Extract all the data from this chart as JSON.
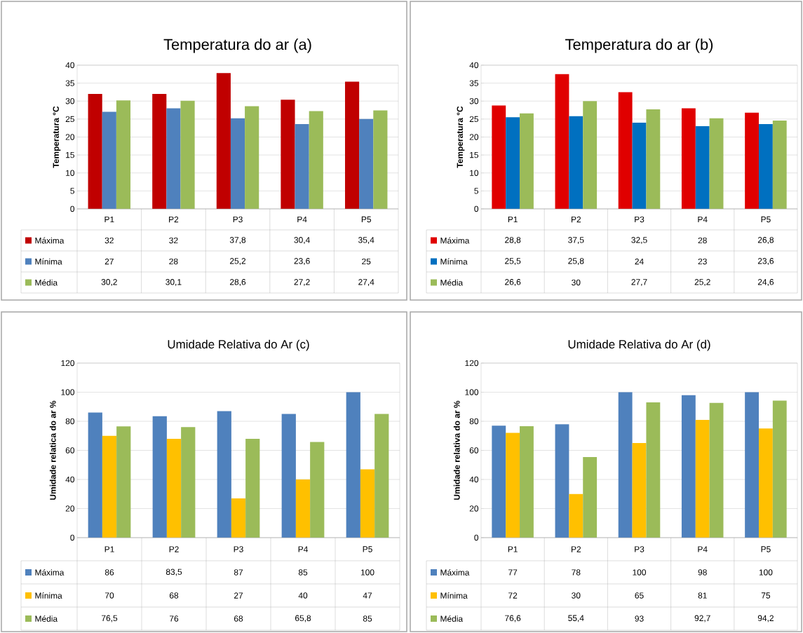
{
  "chart_data": [
    {
      "type": "bar",
      "title": "Temperatura do ar (a)",
      "ylabel": "Temperatura °C",
      "categories": [
        "P1",
        "P2",
        "P3",
        "P4",
        "P5"
      ],
      "ylim": [
        0,
        40
      ],
      "yticks": [
        0,
        5,
        10,
        15,
        20,
        25,
        30,
        35,
        40
      ],
      "grid": "y",
      "legend": "bottom",
      "series": [
        {
          "name": "Máxima",
          "color": "#c00000",
          "values": [
            32,
            32,
            37.8,
            30.4,
            35.4
          ],
          "value_labels": [
            "32",
            "32",
            "37,8",
            "30,4",
            "35,4"
          ]
        },
        {
          "name": "Mínima",
          "color": "#4f81bd",
          "values": [
            27,
            28,
            25.2,
            23.6,
            25
          ],
          "value_labels": [
            "27",
            "28",
            "25,2",
            "23,6",
            "25"
          ]
        },
        {
          "name": "Média",
          "color": "#9bbb59",
          "values": [
            30.2,
            30.1,
            28.6,
            27.2,
            27.4
          ],
          "value_labels": [
            "30,2",
            "30,1",
            "28,6",
            "27,2",
            "27,4"
          ]
        }
      ]
    },
    {
      "type": "bar",
      "title": "Temperatura do ar (b)",
      "ylabel": "Temperatura °C",
      "categories": [
        "P1",
        "P2",
        "P3",
        "P4",
        "P5"
      ],
      "ylim": [
        0,
        40
      ],
      "yticks": [
        0,
        5,
        10,
        15,
        20,
        25,
        30,
        35,
        40
      ],
      "grid": "y",
      "legend": "bottom",
      "series": [
        {
          "name": "Máxima",
          "color": "#e00000",
          "values": [
            28.8,
            37.5,
            32.5,
            28,
            26.8
          ],
          "value_labels": [
            "28,8",
            "37,5",
            "32,5",
            "28",
            "26,8"
          ]
        },
        {
          "name": "Mínima",
          "color": "#0070c0",
          "values": [
            25.5,
            25.8,
            24,
            23,
            23.6
          ],
          "value_labels": [
            "25,5",
            "25,8",
            "24",
            "23",
            "23,6"
          ]
        },
        {
          "name": "Média",
          "color": "#9bbb59",
          "values": [
            26.6,
            30,
            27.7,
            25.2,
            24.6
          ],
          "value_labels": [
            "26,6",
            "30",
            "27,7",
            "25,2",
            "24,6"
          ]
        }
      ]
    },
    {
      "type": "bar",
      "title": "Umidade Relativa do Ar (c)",
      "ylabel": "Umidade relatica do ar %",
      "categories": [
        "P1",
        "P2",
        "P3",
        "P4",
        "P5"
      ],
      "ylim": [
        0,
        120
      ],
      "yticks": [
        0,
        20,
        40,
        60,
        80,
        100,
        120
      ],
      "grid": "y",
      "legend": "bottom",
      "series": [
        {
          "name": "Máxima",
          "color": "#4f81bd",
          "values": [
            86,
            83.5,
            87,
            85,
            100
          ],
          "value_labels": [
            "86",
            "83,5",
            "87",
            "85",
            "100"
          ]
        },
        {
          "name": "Mínima",
          "color": "#ffc000",
          "values": [
            70,
            68,
            27,
            40,
            47
          ],
          "value_labels": [
            "70",
            "68",
            "27",
            "40",
            "47"
          ]
        },
        {
          "name": "Média",
          "color": "#9bbb59",
          "values": [
            76.5,
            76,
            68,
            65.8,
            85
          ],
          "value_labels": [
            "76,5",
            "76",
            "68",
            "65,8",
            "85"
          ]
        }
      ]
    },
    {
      "type": "bar",
      "title": "Umidade Relativa do Ar (d)",
      "ylabel": "Umidade relativa do ar %",
      "categories": [
        "P1",
        "P2",
        "P3",
        "P4",
        "P5"
      ],
      "ylim": [
        0,
        120
      ],
      "yticks": [
        0,
        20,
        40,
        60,
        80,
        100,
        120
      ],
      "grid": "y",
      "legend": "bottom",
      "series": [
        {
          "name": "Máxima",
          "color": "#4f81bd",
          "values": [
            77,
            78,
            100,
            98,
            100
          ],
          "value_labels": [
            "77",
            "78",
            "100",
            "98",
            "100"
          ]
        },
        {
          "name": "Mínima",
          "color": "#ffc000",
          "values": [
            72,
            30,
            65,
            81,
            75
          ],
          "value_labels": [
            "72",
            "30",
            "65",
            "81",
            "75"
          ]
        },
        {
          "name": "Média",
          "color": "#9bbb59",
          "values": [
            76.6,
            55.4,
            93,
            92.7,
            94.2
          ],
          "value_labels": [
            "76,6",
            "55,4",
            "93",
            "92,7",
            "94,2"
          ]
        }
      ]
    }
  ]
}
